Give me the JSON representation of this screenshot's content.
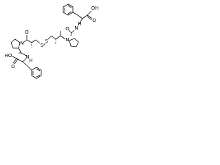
{
  "atoms": [
    {
      "label": "OH"
    },
    {
      "label": "O"
    },
    {
      "label": "H"
    },
    {
      "label": "N"
    },
    {
      "label": "O"
    },
    {
      "label": "N"
    },
    {
      "label": "S"
    },
    {
      "label": "S"
    },
    {
      "label": "O"
    },
    {
      "label": "N"
    },
    {
      "label": "HO"
    },
    {
      "label": "O"
    },
    {
      "label": "N"
    },
    {
      "label": "H"
    }
  ]
}
